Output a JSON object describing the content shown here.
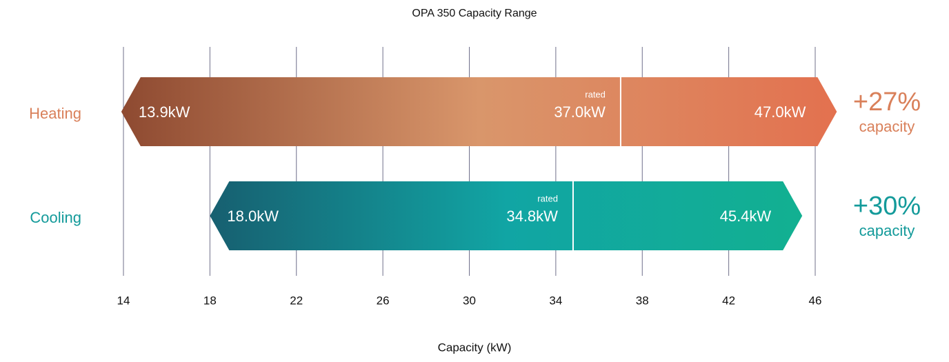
{
  "chart_data": {
    "type": "range",
    "title": "OPA 350 Capacity Range",
    "xlabel": "Capacity (kW)",
    "xlim": [
      14,
      46
    ],
    "xticks": [
      14,
      18,
      22,
      26,
      30,
      34,
      38,
      42,
      46
    ],
    "grid": true,
    "rated_label": "rated",
    "series": [
      {
        "name": "Heating",
        "color": "#d9805a",
        "colors": [
          "#8e4a31",
          "#d9966b",
          "#e3714f"
        ],
        "values": [
          13.9,
          37.0,
          47.0
        ],
        "value_labels": [
          "13.9kW",
          "37.0kW",
          "47.0kW"
        ],
        "annotation": "+27%",
        "annotation_sub": "capacity"
      },
      {
        "name": "Cooling",
        "color": "#139a9a",
        "colors": [
          "#175f70",
          "#11a5a4",
          "#12b091"
        ],
        "values": [
          18.0,
          34.8,
          45.4
        ],
        "value_labels": [
          "18.0kW",
          "34.8kW",
          "45.4kW"
        ],
        "annotation": "+30%",
        "annotation_sub": "capacity"
      }
    ]
  }
}
